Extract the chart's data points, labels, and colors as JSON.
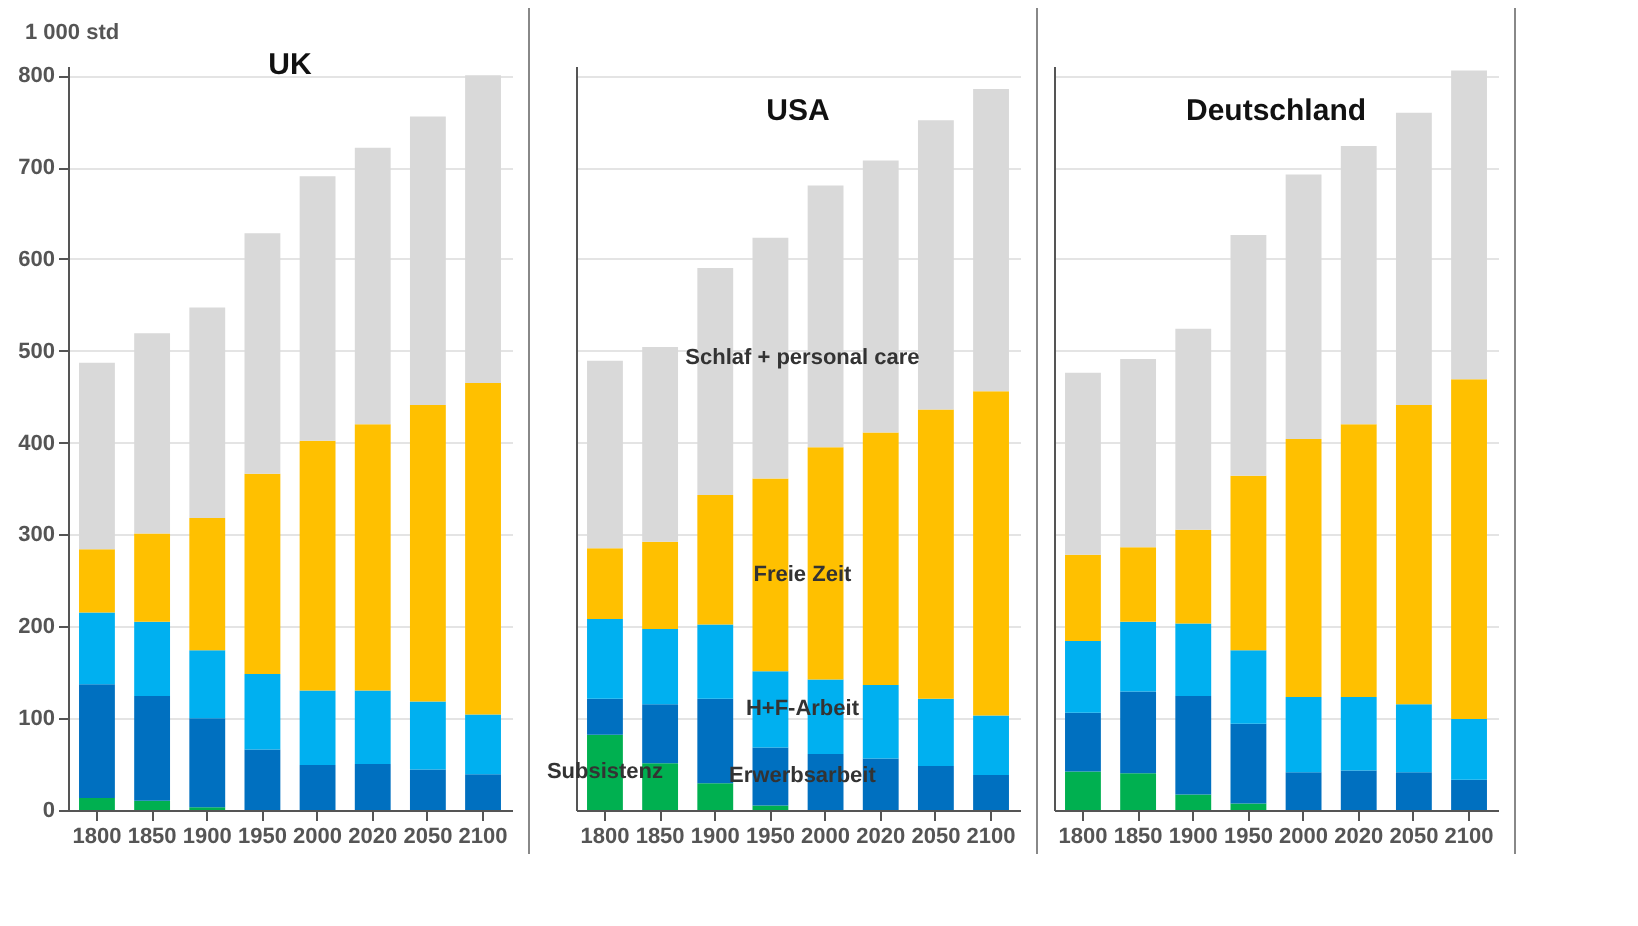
{
  "chart_data": [
    {
      "type": "bar",
      "title": "UK",
      "ylabel": "1 000 std",
      "stacked": true,
      "grid": "y",
      "categories": [
        "1800",
        "1850",
        "1900",
        "1950",
        "2000",
        "2020",
        "2050",
        "2100"
      ],
      "ylim": [
        0,
        810
      ],
      "yticks": [
        0,
        100,
        200,
        300,
        400,
        500,
        600,
        700,
        800
      ],
      "series": [
        {
          "color": "#00b050",
          "values": [
            13,
            10,
            3,
            0,
            0,
            0,
            0,
            0
          ]
        },
        {
          "color": "#0070c0",
          "values": [
            124,
            114,
            97,
            66,
            49,
            50,
            44,
            39
          ]
        },
        {
          "color": "#00b0f0",
          "values": [
            78,
            81,
            74,
            82,
            81,
            80,
            74,
            65
          ]
        },
        {
          "color": "#ffc000",
          "values": [
            69,
            96,
            144,
            218,
            272,
            290,
            323,
            361
          ]
        },
        {
          "color": "#d9d9d9",
          "values": [
            203,
            218,
            229,
            262,
            288,
            301,
            314,
            335
          ]
        }
      ]
    },
    {
      "type": "bar",
      "title": "USA",
      "stacked": true,
      "grid": "y",
      "tick_labels": "x",
      "categories": [
        "1800",
        "1850",
        "1900",
        "1950",
        "2000",
        "2020",
        "2050",
        "2100"
      ],
      "ylim": [
        0,
        810
      ],
      "yticks": [
        0,
        100,
        200,
        300,
        400,
        500,
        600,
        700,
        800
      ],
      "series": [
        {
          "name": "Subsistenz",
          "color": "#00b050",
          "values": [
            82,
            51,
            29,
            5,
            0,
            0,
            0,
            0
          ]
        },
        {
          "name": "Erwerbsarbeit",
          "color": "#0070c0",
          "values": [
            39,
            64,
            92,
            63,
            61,
            56,
            48,
            38
          ]
        },
        {
          "name": "H+F-Arbeit",
          "color": "#00b0f0",
          "values": [
            87,
            82,
            81,
            83,
            81,
            80,
            73,
            65
          ]
        },
        {
          "name": "Freie Zeit",
          "color": "#ffc000",
          "values": [
            77,
            95,
            141,
            210,
            253,
            275,
            315,
            353
          ]
        },
        {
          "name": "Schlaf + personal care",
          "color": "#d9d9d9",
          "values": [
            204,
            212,
            247,
            262,
            285,
            296,
            315,
            329
          ]
        }
      ]
    },
    {
      "type": "bar",
      "title": "Deutschland",
      "stacked": true,
      "grid": "y",
      "tick_labels": "x",
      "categories": [
        "1800",
        "1850",
        "1900",
        "1950",
        "2000",
        "2020",
        "2050",
        "2100"
      ],
      "ylim": [
        0,
        810
      ],
      "yticks": [
        0,
        100,
        200,
        300,
        400,
        500,
        600,
        700,
        800
      ],
      "series": [
        {
          "color": "#00b050",
          "values": [
            42,
            40,
            17,
            7,
            0,
            0,
            0,
            0
          ]
        },
        {
          "color": "#0070c0",
          "values": [
            64,
            89,
            107,
            87,
            41,
            43,
            41,
            33
          ]
        },
        {
          "color": "#00b0f0",
          "values": [
            78,
            76,
            79,
            80,
            82,
            80,
            74,
            66
          ]
        },
        {
          "color": "#ffc000",
          "values": [
            94,
            81,
            102,
            190,
            281,
            297,
            326,
            370
          ]
        },
        {
          "color": "#d9d9d9",
          "values": [
            198,
            205,
            219,
            262,
            288,
            303,
            318,
            336
          ]
        }
      ]
    }
  ]
}
